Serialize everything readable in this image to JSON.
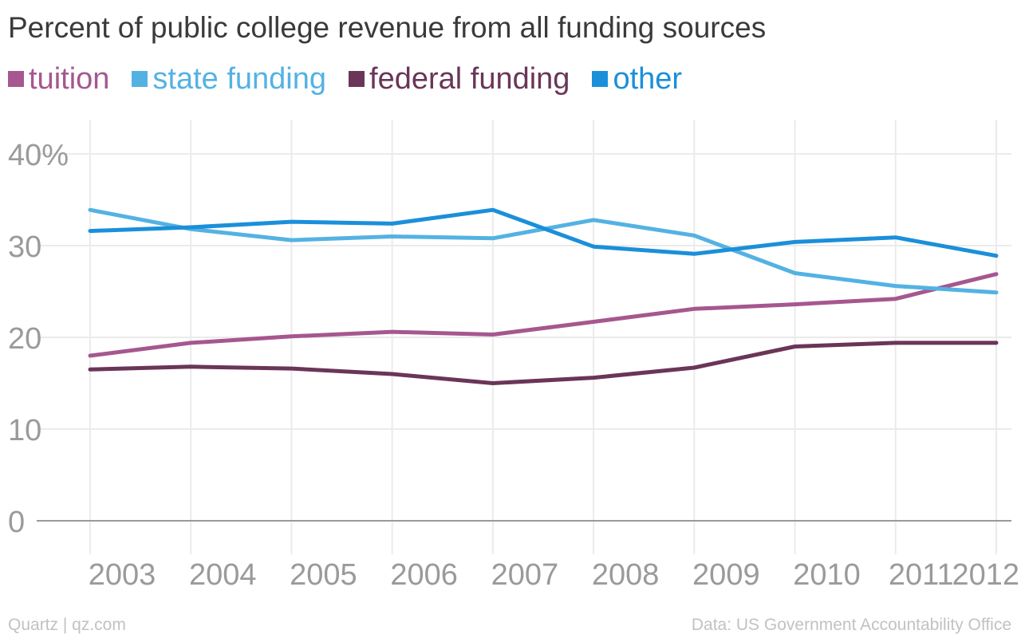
{
  "colors": {
    "tuition": "#a6578f",
    "state_funding": "#54b2e2",
    "federal_funding": "#6a3558",
    "other": "#1b8fd9",
    "grid": "#ebebeb",
    "axis": "#9a9a9a",
    "tick_text": "#9a9a9a"
  },
  "chart_data": {
    "type": "line",
    "title": "Percent of public college revenue from all funding sources",
    "xlabel": "",
    "ylabel": "",
    "x": [
      "2003",
      "2004",
      "2005",
      "2006",
      "2007",
      "2008",
      "2009",
      "2010",
      "2011",
      "2012"
    ],
    "ylim": [
      0,
      40
    ],
    "yticks": [
      0,
      10,
      20,
      30,
      40
    ],
    "ytick_labels": [
      "0",
      "10",
      "20",
      "30",
      "40%"
    ],
    "grid": true,
    "legend_position": "top-left",
    "series": [
      {
        "key": "tuition",
        "name": "tuition",
        "values": [
          18.0,
          19.4,
          20.1,
          20.6,
          20.3,
          21.7,
          23.1,
          23.6,
          24.2,
          26.9
        ]
      },
      {
        "key": "state_funding",
        "name": "state funding",
        "values": [
          33.9,
          31.8,
          30.6,
          31.0,
          30.8,
          32.8,
          31.1,
          27.0,
          25.6,
          24.9
        ]
      },
      {
        "key": "federal_funding",
        "name": "federal funding",
        "values": [
          16.5,
          16.8,
          16.6,
          16.0,
          15.0,
          15.6,
          16.7,
          19.0,
          19.4,
          19.4
        ]
      },
      {
        "key": "other",
        "name": "other",
        "values": [
          31.6,
          32.0,
          32.6,
          32.4,
          33.9,
          29.9,
          29.1,
          30.4,
          30.9,
          28.9
        ]
      }
    ]
  },
  "footer": {
    "source_left": "Quartz | qz.com",
    "source_right": "Data: US Government Accountability Office"
  }
}
